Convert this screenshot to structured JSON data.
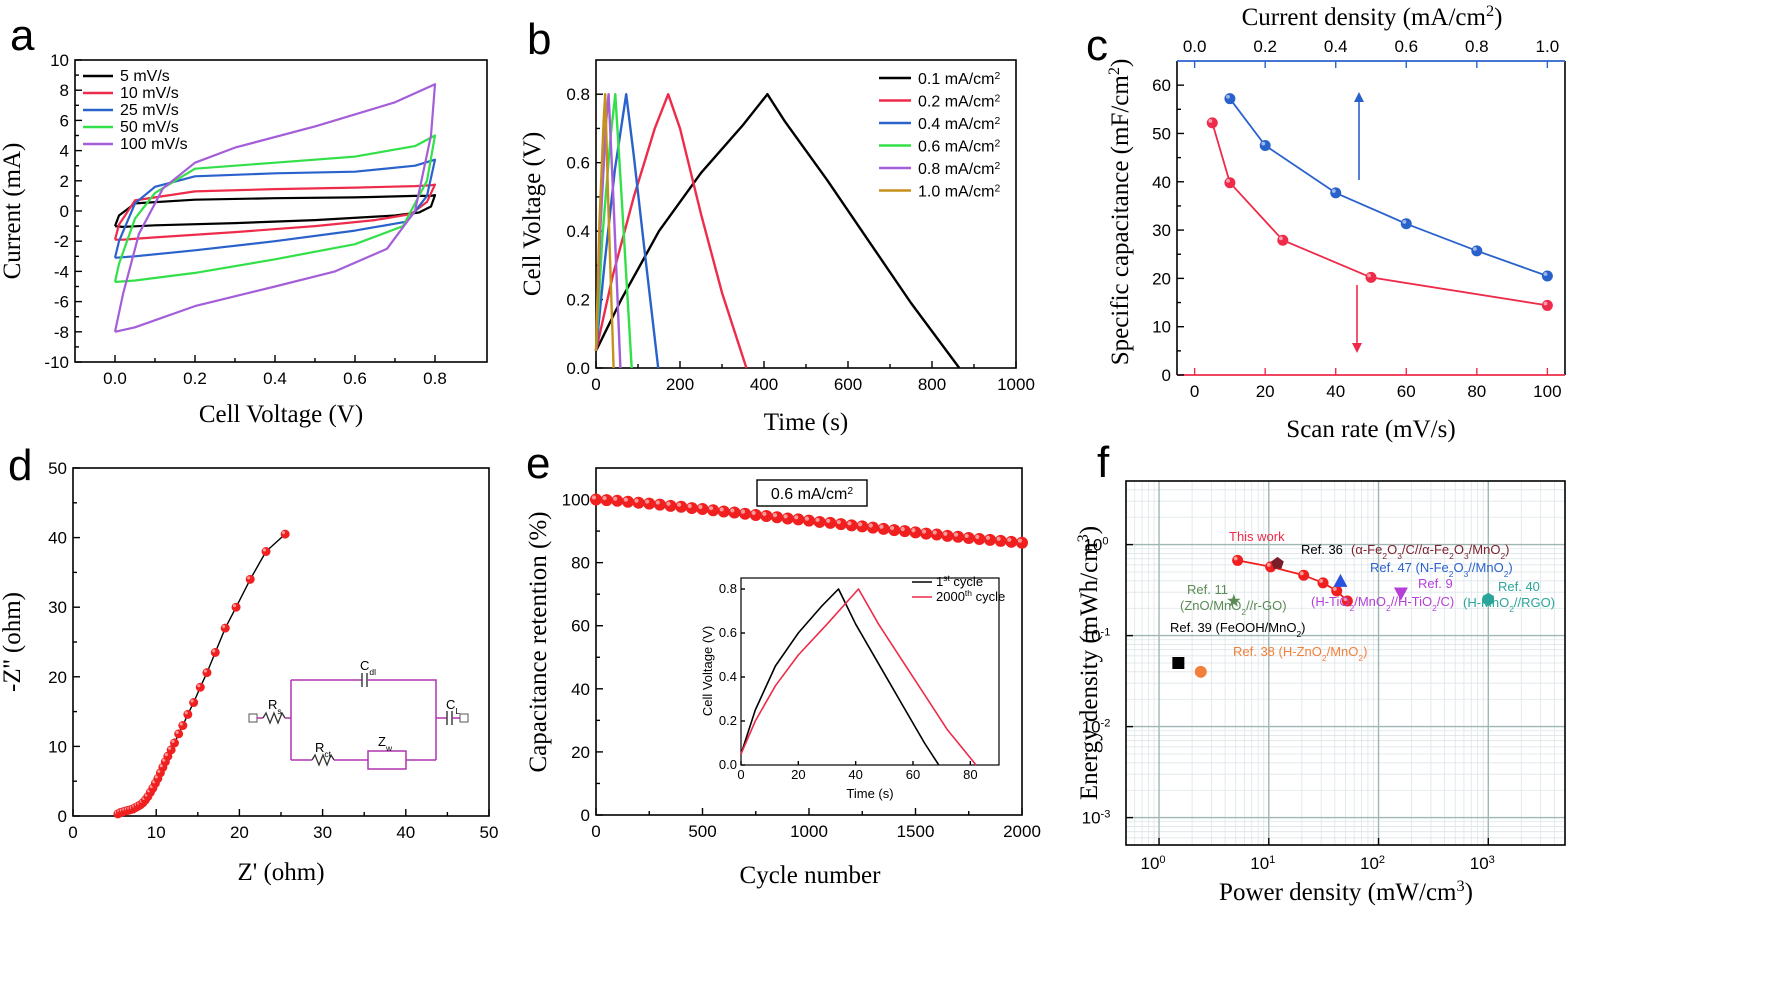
{
  "colors": {
    "black": "#000000",
    "red": "#ee2b4a",
    "blue": "#2a62cc",
    "green": "#33e04a",
    "purple": "#a45ed8",
    "gold": "#c6901d",
    "markerRed": "#f02020",
    "circuit": "#b033b0"
  },
  "chart_data": [
    {
      "panel": "a",
      "type": "line",
      "xlabel": "Cell Voltage (V)",
      "ylabel": "Current (mA)",
      "xlim": [
        -0.1,
        0.93
      ],
      "ylim": [
        -10,
        10
      ],
      "xticks": [
        0.0,
        0.2,
        0.4,
        0.6,
        0.8
      ],
      "xtick_labels": [
        "0.0",
        "0.2",
        "0.4",
        "0.6",
        "0.8"
      ],
      "yticks": [
        -10,
        -8,
        -6,
        -4,
        -2,
        0,
        2,
        4,
        6,
        8,
        10
      ],
      "ytick_labels": [
        "-10",
        "-8",
        "-6",
        "-4",
        "-2",
        "0",
        "2",
        "4",
        "6",
        "8",
        "10"
      ],
      "legend_position": "top-left",
      "series": [
        {
          "name": "5 mV/s",
          "color": "#000000",
          "x": [
            0.0,
            0.01,
            0.05,
            0.2,
            0.4,
            0.6,
            0.75,
            0.79,
            0.8,
            0.79,
            0.76,
            0.7,
            0.5,
            0.3,
            0.1,
            0.02,
            0.0
          ],
          "y": [
            -1.0,
            -0.3,
            0.5,
            0.75,
            0.85,
            0.9,
            1.0,
            1.0,
            1.05,
            0.3,
            -0.1,
            -0.3,
            -0.6,
            -0.8,
            -0.95,
            -1.05,
            -1.0
          ]
        },
        {
          "name": "10 mV/s",
          "color": "#ee2b4a",
          "x": [
            0.0,
            0.01,
            0.05,
            0.2,
            0.4,
            0.6,
            0.75,
            0.79,
            0.8,
            0.78,
            0.74,
            0.65,
            0.5,
            0.3,
            0.1,
            0.02,
            0.0
          ],
          "y": [
            -1.9,
            -0.9,
            0.7,
            1.3,
            1.45,
            1.55,
            1.65,
            1.7,
            1.75,
            0.6,
            -0.2,
            -0.6,
            -1.0,
            -1.4,
            -1.75,
            -1.9,
            -1.9
          ]
        },
        {
          "name": "25 mV/s",
          "color": "#2a62cc",
          "x": [
            0.0,
            0.01,
            0.05,
            0.1,
            0.2,
            0.4,
            0.6,
            0.75,
            0.8,
            0.78,
            0.73,
            0.6,
            0.4,
            0.2,
            0.05,
            0.0
          ],
          "y": [
            -3.1,
            -2.0,
            0.5,
            1.6,
            2.3,
            2.5,
            2.6,
            3.0,
            3.4,
            1.0,
            -0.7,
            -1.3,
            -2.0,
            -2.6,
            -3.0,
            -3.1
          ]
        },
        {
          "name": "50 mV/s",
          "color": "#33e04a",
          "x": [
            0.0,
            0.01,
            0.05,
            0.1,
            0.2,
            0.4,
            0.6,
            0.75,
            0.8,
            0.78,
            0.72,
            0.6,
            0.4,
            0.2,
            0.05,
            0.0
          ],
          "y": [
            -4.7,
            -3.5,
            -0.5,
            1.2,
            2.8,
            3.2,
            3.6,
            4.3,
            5.0,
            2.0,
            -1.0,
            -2.2,
            -3.2,
            -4.1,
            -4.6,
            -4.7
          ]
        },
        {
          "name": "100 mV/s",
          "color": "#a45ed8",
          "x": [
            0.0,
            0.02,
            0.06,
            0.12,
            0.2,
            0.3,
            0.5,
            0.7,
            0.8,
            0.79,
            0.75,
            0.68,
            0.55,
            0.4,
            0.2,
            0.05,
            0.0
          ],
          "y": [
            -8.0,
            -5.5,
            -1.5,
            1.5,
            3.2,
            4.2,
            5.6,
            7.2,
            8.4,
            5.0,
            0.0,
            -2.5,
            -4.0,
            -5.0,
            -6.3,
            -7.7,
            -8.0
          ]
        }
      ]
    },
    {
      "panel": "b",
      "type": "line",
      "xlabel": "Time (s)",
      "ylabel": "Cell Voltage (V)",
      "xlim": [
        0,
        1000
      ],
      "ylim": [
        0,
        0.9
      ],
      "xticks": [
        0,
        200,
        400,
        600,
        800,
        1000
      ],
      "xtick_labels": [
        "0",
        "200",
        "400",
        "600",
        "800",
        "1000"
      ],
      "yticks": [
        0.0,
        0.2,
        0.4,
        0.6,
        0.8
      ],
      "ytick_labels": [
        "0.0",
        "0.2",
        "0.4",
        "0.6",
        "0.8"
      ],
      "legend_position": "top-right",
      "series": [
        {
          "name": "0.1 mA/cm",
          "superscript": "2",
          "color": "#000000",
          "x": [
            0,
            60,
            150,
            250,
            350,
            408,
            450,
            550,
            650,
            750,
            865
          ],
          "y": [
            0.05,
            0.2,
            0.4,
            0.57,
            0.71,
            0.8,
            0.72,
            0.55,
            0.37,
            0.19,
            0.0
          ]
        },
        {
          "name": "0.2 mA/cm",
          "superscript": "2",
          "color": "#ee2b4a",
          "x": [
            0,
            40,
            90,
            140,
            172,
            200,
            250,
            300,
            358
          ],
          "y": [
            0.05,
            0.27,
            0.5,
            0.7,
            0.8,
            0.7,
            0.45,
            0.22,
            0.0
          ]
        },
        {
          "name": "0.4 mA/cm",
          "superscript": "2",
          "color": "#2a62cc",
          "x": [
            0,
            20,
            45,
            72,
            90,
            115,
            148
          ],
          "y": [
            0.05,
            0.3,
            0.58,
            0.8,
            0.62,
            0.35,
            0.0
          ]
        },
        {
          "name": "0.6 mA/cm",
          "superscript": "2",
          "color": "#33e04a",
          "x": [
            0,
            15,
            35,
            46,
            60,
            85
          ],
          "y": [
            0.05,
            0.38,
            0.68,
            0.8,
            0.52,
            0.0
          ]
        },
        {
          "name": "0.8 mA/cm",
          "superscript": "2",
          "color": "#a45ed8",
          "x": [
            0,
            10,
            24,
            30,
            42,
            58
          ],
          "y": [
            0.05,
            0.4,
            0.72,
            0.8,
            0.48,
            0.0
          ]
        },
        {
          "name": "1.0 mA/cm",
          "superscript": "2",
          "color": "#c6901d",
          "x": [
            0,
            8,
            18,
            22,
            30,
            42
          ],
          "y": [
            0.05,
            0.42,
            0.72,
            0.8,
            0.45,
            0.0
          ]
        }
      ]
    },
    {
      "panel": "c",
      "type": "line",
      "xlabel": "Scan rate (mV/s)",
      "ylabel": "Specific capacitance (mF/cm",
      "ylabel_superscript": "2",
      "ylabel_close": ")",
      "x2label": "Current density (mA/cm",
      "x2label_superscript": "2",
      "x2label_close": ")",
      "xlim": [
        -5,
        105
      ],
      "ylim": [
        0,
        65
      ],
      "x2lim": [
        -0.05,
        1.05
      ],
      "xticks": [
        0,
        20,
        40,
        60,
        80,
        100
      ],
      "xtick_labels": [
        "0",
        "20",
        "40",
        "60",
        "80",
        "100"
      ],
      "x2ticks": [
        0.0,
        0.2,
        0.4,
        0.6,
        0.8,
        1.0
      ],
      "x2tick_labels": [
        "0.0",
        "0.2",
        "0.4",
        "0.6",
        "0.8",
        "1.0"
      ],
      "yticks": [
        0,
        10,
        20,
        30,
        40,
        50,
        60
      ],
      "ytick_labels": [
        "0",
        "10",
        "20",
        "30",
        "40",
        "50",
        "60"
      ],
      "series": [
        {
          "color": "#2a62cc",
          "axis": "top",
          "x": [
            0.1,
            0.2,
            0.4,
            0.6,
            0.8,
            1.0
          ],
          "y": [
            57.2,
            47.5,
            37.7,
            31.3,
            25.7,
            20.5
          ]
        },
        {
          "color": "#ee2b4a",
          "axis": "bottom",
          "x": [
            5,
            10,
            25,
            50,
            100
          ],
          "y": [
            52.2,
            39.8,
            27.9,
            20.2,
            14.4
          ]
        }
      ]
    },
    {
      "panel": "d",
      "type": "scatter",
      "xlabel": "Z' (ohm)",
      "ylabel": "-Z'' (ohm)",
      "xlim": [
        0,
        50
      ],
      "ylim": [
        0,
        50
      ],
      "xticks": [
        0,
        10,
        20,
        30,
        40,
        50
      ],
      "xtick_labels": [
        "0",
        "10",
        "20",
        "30",
        "40",
        "50"
      ],
      "yticks": [
        0,
        10,
        20,
        30,
        40,
        50
      ],
      "ytick_labels": [
        "0",
        "10",
        "20",
        "30",
        "40",
        "50"
      ],
      "series": [
        {
          "color": "#f02020",
          "x": [
            5.4,
            5.7,
            6.0,
            6.3,
            6.6,
            6.9,
            7.2,
            7.5,
            7.8,
            8.1,
            8.4,
            8.7,
            9.0,
            9.3,
            9.6,
            9.9,
            10.2,
            10.5,
            10.8,
            11.1,
            11.4,
            11.8,
            12.2,
            12.7,
            13.2,
            13.8,
            14.5,
            15.3,
            16.1,
            17.1,
            18.3,
            19.6,
            21.3,
            23.2,
            25.5
          ],
          "y": [
            0.3,
            0.5,
            0.6,
            0.7,
            0.8,
            0.9,
            1.0,
            1.2,
            1.4,
            1.6,
            1.9,
            2.3,
            2.8,
            3.4,
            4.0,
            4.7,
            5.4,
            6.2,
            7.0,
            7.8,
            8.6,
            9.5,
            10.5,
            11.8,
            13.0,
            14.6,
            16.3,
            18.5,
            20.6,
            23.5,
            27.0,
            30.0,
            34.0,
            38.0,
            40.5
          ]
        }
      ]
    },
    {
      "panel": "e",
      "type": "scatter",
      "xlabel": "Cycle number",
      "ylabel": "Capacitance retention (%)",
      "xlim": [
        0,
        2000
      ],
      "ylim": [
        0,
        110
      ],
      "xticks": [
        0,
        500,
        1000,
        1500,
        2000
      ],
      "xtick_labels": [
        "0",
        "500",
        "1000",
        "1500",
        "2000"
      ],
      "yticks": [
        0,
        20,
        40,
        60,
        80,
        100
      ],
      "ytick_labels": [
        "0",
        "20",
        "40",
        "60",
        "80",
        "100"
      ],
      "series": [
        {
          "color": "#f02020",
          "x": [
            0,
            50,
            100,
            150,
            200,
            250,
            300,
            350,
            400,
            450,
            500,
            550,
            600,
            650,
            700,
            750,
            800,
            850,
            900,
            950,
            1000,
            1050,
            1100,
            1150,
            1200,
            1250,
            1300,
            1350,
            1400,
            1450,
            1500,
            1550,
            1600,
            1650,
            1700,
            1750,
            1800,
            1850,
            1900,
            1950,
            2000
          ],
          "y": [
            100.0,
            99.8,
            99.6,
            99.3,
            99.0,
            98.7,
            98.4,
            98.0,
            97.7,
            97.3,
            97.0,
            96.6,
            96.2,
            95.9,
            95.5,
            95.1,
            94.8,
            94.4,
            94.0,
            93.7,
            93.3,
            92.9,
            92.6,
            92.2,
            91.8,
            91.5,
            91.1,
            90.7,
            90.3,
            90.0,
            89.6,
            89.2,
            88.9,
            88.5,
            88.2,
            87.8,
            87.5,
            87.2,
            86.9,
            86.6,
            86.3
          ]
        }
      ],
      "annotation_box": {
        "text": "0.6 mA/cm",
        "superscript": "2"
      },
      "inset": {
        "type": "line",
        "xlabel": "Time (s)",
        "ylabel": "Cell Voltage (V)",
        "xlim": [
          0,
          90
        ],
        "ylim": [
          0,
          0.85
        ],
        "xticks": [
          0,
          20,
          40,
          60,
          80
        ],
        "xtick_labels": [
          "0",
          "20",
          "40",
          "60",
          "80"
        ],
        "yticks": [
          0.0,
          0.2,
          0.4,
          0.6,
          0.8
        ],
        "ytick_labels": [
          "0.0",
          "0.2",
          "0.4",
          "0.6",
          "0.8"
        ],
        "legend_position": "top-right",
        "series": [
          {
            "name_prefix": "1",
            "name_sup": "st",
            "name_suffix": " cycle",
            "color": "#000000",
            "x": [
              0,
              5,
              12,
              20,
              28,
              34,
              40,
              48,
              56,
              64,
              69
            ],
            "y": [
              0.05,
              0.25,
              0.45,
              0.6,
              0.72,
              0.8,
              0.64,
              0.46,
              0.28,
              0.1,
              0.0
            ]
          },
          {
            "name_prefix": "2000",
            "name_sup": "th",
            "name_suffix": " cycle",
            "color": "#ee2b4a",
            "x": [
              0,
              5,
              12,
              20,
              30,
              41,
              48,
              56,
              64,
              72,
              82
            ],
            "y": [
              0.05,
              0.2,
              0.36,
              0.5,
              0.64,
              0.8,
              0.64,
              0.48,
              0.32,
              0.16,
              0.0
            ]
          }
        ]
      }
    },
    {
      "panel": "f",
      "type": "scatter",
      "xlabel": "Power density (mW/cm",
      "xlabel_superscript": "3",
      "xlabel_close": ")",
      "ylabel": "Energy density (mWh/cm",
      "ylabel_superscript": "3",
      "ylabel_close": ")",
      "xscale": "log",
      "yscale": "log",
      "xlim": [
        0.5,
        5000
      ],
      "ylim": [
        0.0005,
        5
      ],
      "grid": true,
      "xticks": [
        1,
        10,
        100,
        1000
      ],
      "xtick_bases": [
        "10",
        "10",
        "10",
        "10"
      ],
      "xtick_exps": [
        "0",
        "1",
        "2",
        "3"
      ],
      "yticks": [
        0.001,
        0.01,
        0.1,
        1
      ],
      "ytick_bases": [
        "10",
        "10",
        "10",
        "10"
      ],
      "ytick_exps": [
        "-3",
        "-2",
        "-1",
        "0"
      ],
      "this_work": {
        "label": "This work",
        "color": "#f02020",
        "x": [
          5.2,
          10.4,
          20.8,
          31.2,
          41.6,
          52.0
        ],
        "y": [
          0.67,
          0.57,
          0.46,
          0.38,
          0.31,
          0.24
        ]
      },
      "references": [
        {
          "label": "Ref. 36 (α-Fe",
          "marker": "pentagon",
          "color": "#7a1f2a",
          "x": 12,
          "y": 0.62
        },
        {
          "label": "Ref. 47 (N-Fe",
          "marker": "triangle-up",
          "color": "#2a52e0",
          "x": 45,
          "y": 0.4
        },
        {
          "label": "Ref. 9",
          "marker": "triangle-down",
          "color": "#b540d8",
          "x": 160,
          "y": 0.29
        },
        {
          "label": "Ref. 11",
          "marker": "star",
          "color": "#5b8a55",
          "x": 4.8,
          "y": 0.24
        },
        {
          "label": "Ref. 40",
          "marker": "hexagon",
          "color": "#2aa59a",
          "x": 1000,
          "y": 0.25
        },
        {
          "label": "Ref. 39 (FeOOH/MnO",
          "marker": "square",
          "color": "#000000",
          "x": 1.5,
          "y": 0.05
        },
        {
          "label": "Ref. 38",
          "marker": "circle",
          "color": "#f2803a",
          "x": 2.4,
          "y": 0.04
        }
      ]
    }
  ],
  "panel_letters": [
    "a",
    "b",
    "c",
    "d",
    "e",
    "f"
  ],
  "circuit_labels": {
    "rs": "R",
    "rs_sub": "s",
    "cdl": "C",
    "cdl_sub": "dl",
    "rct": "R",
    "rct_sub": "ct",
    "zw": "Z",
    "zw_sub": "w",
    "cl": "C",
    "cl_sub": "L"
  },
  "f_labels": {
    "this_work": "This work",
    "ref36_a": "Ref. 36",
    "ref36_b": "(α-Fe",
    "ref36_c": "O",
    "ref36_d": "/C//α-Fe",
    "ref36_e": "O",
    "ref36_f": "/MnO",
    "ref36_g": ")",
    "ref47_a": "Ref. 47",
    "ref47_b": "(N-Fe",
    "ref47_c": "O",
    "ref47_d": "//MnO",
    "ref47_e": ")",
    "ref9_a": "Ref. 9",
    "ref9_b": "(H-TiO",
    "ref9_c": "/MnO",
    "ref9_d": "//H-TiO",
    "ref9_e": "/C)",
    "ref11_a": "Ref. 11",
    "ref11_b": "(ZnO/MnO",
    "ref11_c": "//r-GO)",
    "ref40_a": "Ref. 40",
    "ref40_b": "(H-MnO",
    "ref40_c": "//RGO)",
    "ref39_a": "Ref. 39",
    "ref39_b": "(FeOOH/MnO",
    "ref39_c": ")",
    "ref38_a": "Ref. 38",
    "ref38_b": "(H-ZnO",
    "ref38_c": "/MnO",
    "ref38_d": ")",
    "sub2": "2",
    "sub3": "3"
  }
}
